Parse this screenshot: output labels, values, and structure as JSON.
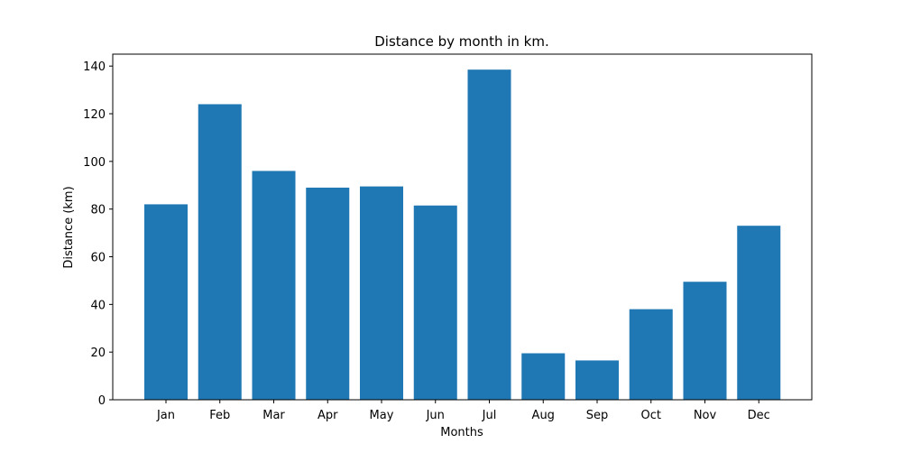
{
  "chart_data": {
    "type": "bar",
    "title": "Distance by month in km.",
    "xlabel": "Months",
    "ylabel": "Distance (km)",
    "categories": [
      "Jan",
      "Feb",
      "Mar",
      "Apr",
      "May",
      "Jun",
      "Jul",
      "Aug",
      "Sep",
      "Oct",
      "Nov",
      "Dec"
    ],
    "values": [
      82,
      124,
      96,
      89,
      89.5,
      81.5,
      138.5,
      19.5,
      16.5,
      38,
      49.5,
      73
    ],
    "ylim": [
      0,
      145
    ],
    "yticks": [
      0,
      20,
      40,
      60,
      80,
      100,
      120,
      140
    ],
    "bar_color": "#1f77b4",
    "grid": false,
    "legend": "none"
  }
}
